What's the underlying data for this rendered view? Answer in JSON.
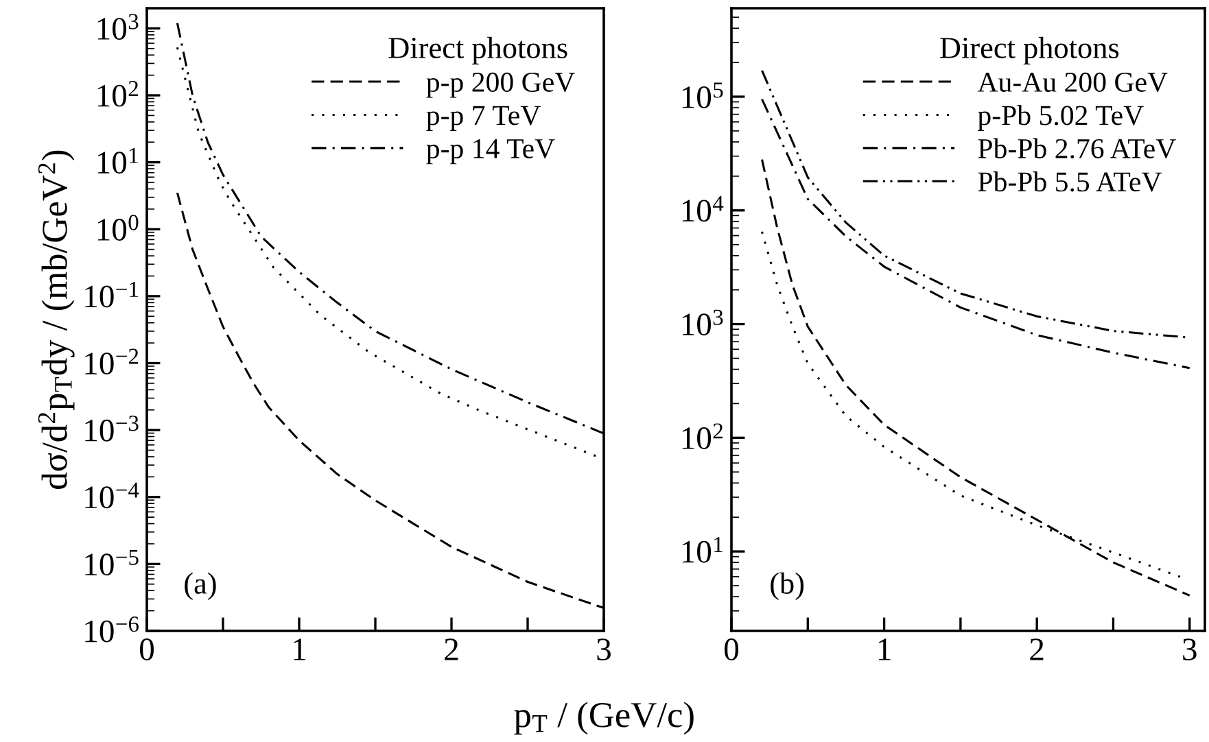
{
  "chart_data": [
    {
      "type": "line",
      "legend_title": "Direct photons",
      "legend": "top right",
      "xlabel": "p$_{T}$ / (GeV/c)",
      "ylabel": "dσ/d$^{2}$p$_{T}$dy / (mb/GeV$^{2}$)",
      "annotations": [
        "(a)"
      ],
      "log": "y",
      "grid": false,
      "xlim": [
        0,
        3
      ],
      "xticks": [
        0,
        {
          "value": 0.5,
          "label": null
        },
        1,
        {
          "value": 1.5,
          "label": null
        },
        2,
        {
          "value": 2.5,
          "label": null
        },
        3
      ],
      "ylim": [
        1e-06,
        2000
      ],
      "yticks": [
        {
          "value": 1e-06,
          "label": "10$^{−6}$"
        },
        {
          "value": 1e-05,
          "label": "10$^{−5}$"
        },
        {
          "value": 0.0001,
          "label": "10$^{−4}$"
        },
        {
          "value": 0.001,
          "label": "10$^{−3}$"
        },
        {
          "value": 0.01,
          "label": "10$^{−2}$"
        },
        {
          "value": 0.1,
          "label": "10$^{−1}$"
        },
        {
          "value": 1,
          "label": "10$^{0}$"
        },
        {
          "value": 10,
          "label": "10$^{1}$"
        },
        {
          "value": 100,
          "label": "10$^{2}$"
        },
        {
          "value": 1000,
          "label": "10$^{3}$"
        }
      ],
      "series": [
        {
          "name": "p-p 200 GeV",
          "color": "#000000",
          "line_style": "dashed",
          "x": [
            0.2,
            0.3,
            0.4,
            0.5,
            0.6,
            0.7,
            0.8,
            1.0,
            1.25,
            1.5,
            1.75,
            2.0,
            2.5,
            3.0
          ],
          "values": [
            3.5,
            0.5,
            0.13,
            0.035,
            0.013,
            0.005,
            0.0022,
            0.0007,
            0.00022,
            8.9e-05,
            4e-05,
            1.8e-05,
            5.4e-06,
            2.2e-06
          ]
        },
        {
          "name": "p-p 7 TeV",
          "color": "#000000",
          "line_style": "dotted",
          "x": [
            0.2,
            0.34,
            0.48,
            0.55,
            0.83,
            1.14,
            1.46,
            1.93,
            2.2,
            2.96
          ],
          "values": [
            520,
            28,
            5,
            2.6,
            0.27,
            0.052,
            0.0145,
            0.0035,
            0.0019,
            0.0004
          ]
        },
        {
          "name": "p-p 14 TeV",
          "color": "#000000",
          "line_style": "dashdot",
          "x": [
            0.2,
            0.3,
            0.4,
            0.5,
            0.75,
            1.0,
            1.25,
            1.5,
            2.0,
            2.5,
            3.0
          ],
          "values": [
            1200,
            100,
            20,
            6.5,
            0.78,
            0.23,
            0.08,
            0.03,
            0.0081,
            0.0026,
            0.00089
          ]
        }
      ]
    },
    {
      "type": "line",
      "legend_title": "Direct photons",
      "legend": "top right",
      "annotations": [
        "(b)"
      ],
      "log": "y",
      "grid": false,
      "xlim": [
        0,
        3.1
      ],
      "xticks": [
        0,
        {
          "value": 0.5,
          "label": null
        },
        1,
        {
          "value": 1.5,
          "label": null
        },
        2,
        {
          "value": 2.5,
          "label": null
        },
        3
      ],
      "ylim": [
        2,
        600000
      ],
      "yticks": [
        {
          "value": 10,
          "label": "10$^{1}$"
        },
        {
          "value": 100,
          "label": "10$^{2}$"
        },
        {
          "value": 1000,
          "label": "10$^{3}$"
        },
        {
          "value": 10000,
          "label": "10$^{4}$"
        },
        {
          "value": 100000,
          "label": "10$^{5}$"
        }
      ],
      "series": [
        {
          "name": "Au-Au 200 GeV",
          "color": "#000000",
          "line_style": "dashed",
          "x": [
            0.2,
            0.3,
            0.4,
            0.5,
            0.75,
            1.0,
            1.5,
            2.0,
            2.5,
            3.0
          ],
          "values": [
            28000,
            7000,
            2200,
            950,
            290,
            130,
            45,
            19,
            8,
            4.1
          ]
        },
        {
          "name": "p-Pb 5.02 TeV",
          "color": "#000000",
          "line_style": "dotted",
          "x": [
            0.2,
            0.3,
            0.4,
            0.5,
            0.75,
            1.0,
            1.5,
            2.0,
            2.5,
            2.95
          ],
          "values": [
            6500,
            2200,
            950,
            450,
            155,
            83,
            31,
            17,
            9.8,
            5.9
          ]
        },
        {
          "name": "Pb-Pb 2.76 ATeV",
          "color": "#000000",
          "line_style": "dashdot",
          "x": [
            0.2,
            0.5,
            0.75,
            1.0,
            1.5,
            2.0,
            2.5,
            3.0
          ],
          "values": [
            95000,
            12600,
            5900,
            3200,
            1400,
            800,
            560,
            410
          ]
        },
        {
          "name": "Pb-Pb 5.5 ATeV",
          "color": "#000000",
          "line_style": "dashdotdot",
          "x": [
            0.2,
            0.5,
            0.75,
            1.0,
            1.5,
            2.0,
            2.5,
            3.0
          ],
          "values": [
            170000,
            19500,
            7800,
            4000,
            1860,
            1170,
            870,
            760
          ]
        }
      ]
    }
  ]
}
